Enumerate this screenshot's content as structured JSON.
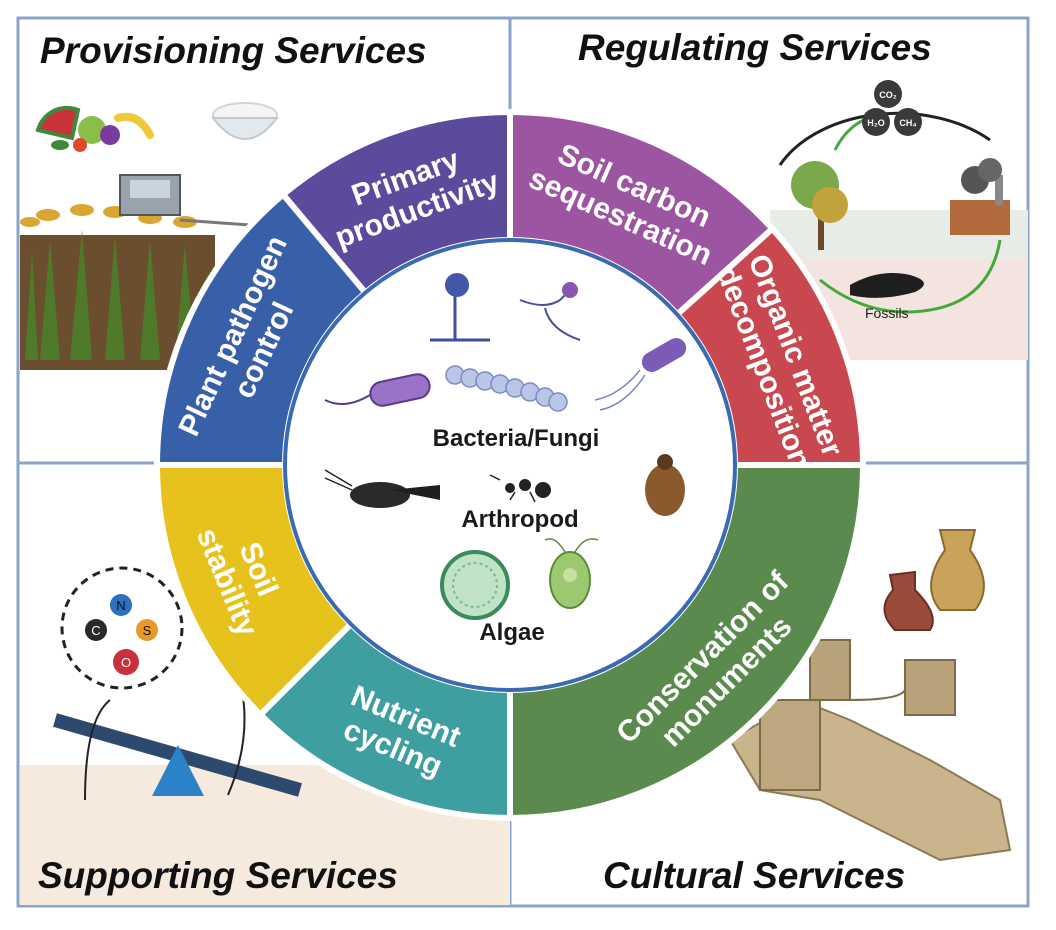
{
  "quadrants": {
    "provisioning": "Provisioning Services",
    "regulating": "Regulating Services",
    "supporting": "Supporting Services",
    "cultural": "Cultural Services"
  },
  "segments": {
    "primary_productivity": [
      "Primary",
      "productivity"
    ],
    "soil_carbon": [
      "Soil carbon",
      "sequestration"
    ],
    "organic_matter": [
      "Organic matter",
      "decomposition"
    ],
    "conservation": [
      "Conservation of",
      "monuments"
    ],
    "nutrient_cycling": [
      "Nutrient",
      "cycling"
    ],
    "soil_stability": [
      "Soil",
      "stability"
    ],
    "plant_pathogen": [
      "Plant pathogen",
      "control"
    ]
  },
  "segment_colors": {
    "primary_productivity": "#5c4a9c",
    "soil_carbon": "#9c55a0",
    "organic_matter": "#c9484f",
    "conservation": "#5b8a4e",
    "nutrient_cycling": "#3f9ea0",
    "soil_stability": "#e8c21c",
    "plant_pathogen": "#3860a8"
  },
  "center_labels": {
    "bacteria": "Bacteria/Fungi",
    "arthropod": "Arthropod",
    "algae": "Algae"
  },
  "carbon_cycle": {
    "co2": "CO₂",
    "h2o": "H₂O",
    "ch4": "CH₄",
    "fossils": "Fossils"
  },
  "elements": {
    "n": "N",
    "c": "C",
    "s": "S",
    "o": "O"
  }
}
